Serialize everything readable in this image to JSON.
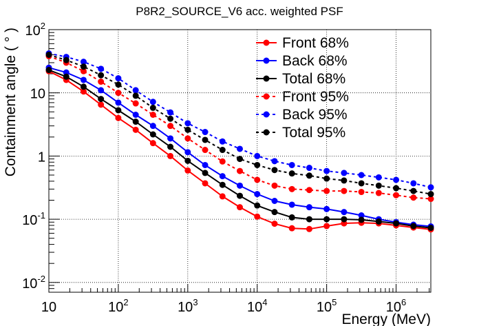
{
  "chart_data": {
    "type": "line",
    "title": "P8R2_SOURCE_V6 acc. weighted PSF",
    "xlabel": "Energy (MeV)",
    "ylabel": "Containment angle ( ° )",
    "xscale": "log",
    "yscale": "log",
    "xlim": [
      10,
      3162278
    ],
    "ylim": [
      0.007,
      100
    ],
    "x_ticks": [
      {
        "value": 10,
        "base": "10",
        "exp": ""
      },
      {
        "value": 100,
        "base": "10",
        "exp": "2"
      },
      {
        "value": 1000,
        "base": "10",
        "exp": "3"
      },
      {
        "value": 10000,
        "base": "10",
        "exp": "4"
      },
      {
        "value": 100000,
        "base": "10",
        "exp": "5"
      },
      {
        "value": 1000000,
        "base": "10",
        "exp": "6"
      }
    ],
    "y_ticks": [
      {
        "value": 100,
        "base": "10",
        "exp": "2"
      },
      {
        "value": 10,
        "base": "10",
        "exp": ""
      },
      {
        "value": 1,
        "base": "1",
        "exp": ""
      },
      {
        "value": 0.1,
        "base": "10",
        "exp": "-1"
      },
      {
        "value": 0.01,
        "base": "10",
        "exp": "-2"
      }
    ],
    "grid": true,
    "legend_position": "top-right",
    "x": [
      10,
      17.8,
      31.6,
      56.2,
      100,
      178,
      316,
      562,
      1000,
      1778,
      3162,
      5623,
      10000,
      17783,
      31623,
      56234,
      100000,
      177828,
      316228,
      562341,
      1000000,
      1778279,
      3162278
    ],
    "series": [
      {
        "name": "Front 68%",
        "color": "#ff0000",
        "style": "solid",
        "values": [
          22,
          16,
          10.5,
          6.5,
          4.0,
          2.6,
          1.6,
          1.0,
          0.59,
          0.37,
          0.23,
          0.155,
          0.11,
          0.085,
          0.072,
          0.07,
          0.078,
          0.086,
          0.088,
          0.086,
          0.08,
          0.074,
          0.069
        ]
      },
      {
        "name": "Back 68%",
        "color": "#0000ff",
        "style": "solid",
        "values": [
          25,
          21,
          16,
          11,
          7.0,
          4.5,
          3.0,
          1.9,
          1.15,
          0.72,
          0.48,
          0.34,
          0.25,
          0.195,
          0.17,
          0.155,
          0.145,
          0.13,
          0.115,
          0.1,
          0.09,
          0.082,
          0.077
        ]
      },
      {
        "name": "Total 68%",
        "color": "#000000",
        "style": "solid",
        "values": [
          23,
          18,
          12.5,
          8.0,
          5.3,
          3.5,
          2.2,
          1.4,
          0.84,
          0.54,
          0.35,
          0.235,
          0.165,
          0.13,
          0.107,
          0.1,
          0.1,
          0.1,
          0.098,
          0.092,
          0.086,
          0.078,
          0.073
        ]
      },
      {
        "name": "Front 95%",
        "color": "#ff0000",
        "style": "dashed",
        "values": [
          38,
          30,
          22,
          15,
          10,
          6.8,
          4.5,
          3.0,
          1.9,
          1.25,
          0.82,
          0.58,
          0.42,
          0.34,
          0.3,
          0.29,
          0.28,
          0.28,
          0.27,
          0.26,
          0.24,
          0.22,
          0.21
        ]
      },
      {
        "name": "Back 95%",
        "color": "#0000ff",
        "style": "dashed",
        "values": [
          42,
          37,
          31,
          24,
          17,
          11,
          7.2,
          4.9,
          3.3,
          2.4,
          1.7,
          1.3,
          1.0,
          0.83,
          0.72,
          0.65,
          0.58,
          0.54,
          0.5,
          0.46,
          0.42,
          0.37,
          0.32
        ]
      },
      {
        "name": "Total 95%",
        "color": "#000000",
        "style": "dashed",
        "values": [
          40,
          33,
          26,
          19,
          13.5,
          9.0,
          5.8,
          3.9,
          2.6,
          1.8,
          1.25,
          0.9,
          0.72,
          0.6,
          0.53,
          0.49,
          0.44,
          0.41,
          0.37,
          0.34,
          0.31,
          0.28,
          0.25
        ]
      }
    ]
  }
}
